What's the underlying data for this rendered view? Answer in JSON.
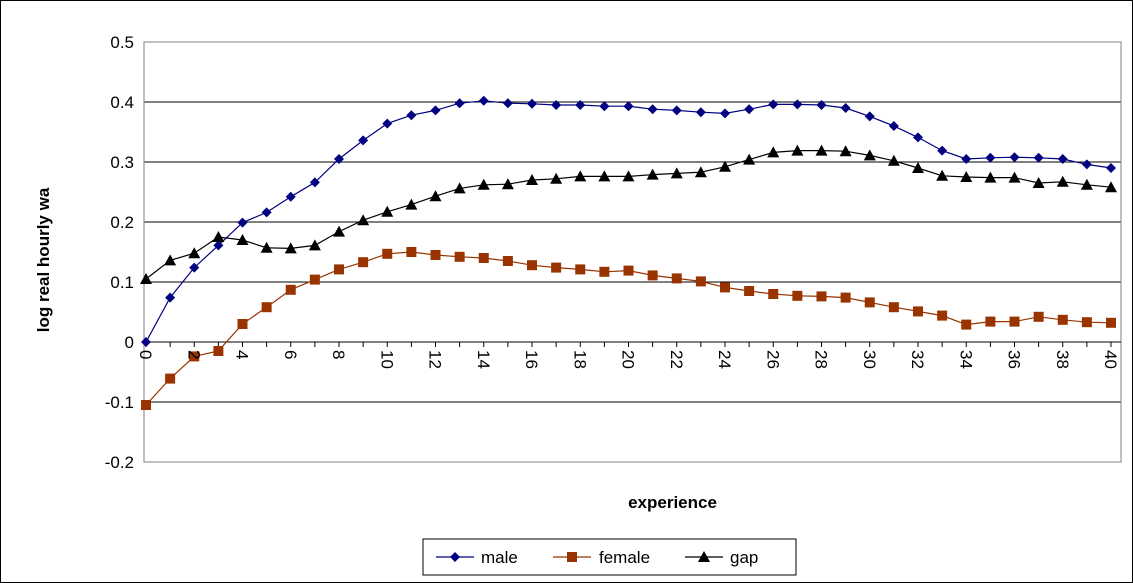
{
  "chart_data": {
    "type": "line",
    "title": "",
    "xlabel": "experience",
    "ylabel": "log real hourly wa",
    "ylim": [
      -0.2,
      0.5
    ],
    "y_ticks": [
      "0.5",
      "0.4",
      "0.3",
      "0.2",
      "0.1",
      "0",
      "-0.1",
      "-0.2"
    ],
    "x_tick_labels": [
      "0",
      "2",
      "4",
      "6",
      "8",
      "10",
      "12",
      "14",
      "16",
      "18",
      "20",
      "22",
      "24",
      "26",
      "28",
      "30",
      "32",
      "34",
      "36",
      "38",
      "40"
    ],
    "x": [
      0,
      1,
      2,
      3,
      4,
      5,
      6,
      7,
      8,
      9,
      10,
      11,
      12,
      13,
      14,
      15,
      16,
      17,
      18,
      19,
      20,
      21,
      22,
      23,
      24,
      25,
      26,
      27,
      28,
      29,
      30,
      31,
      32,
      33,
      34,
      35,
      36,
      37,
      38,
      39,
      40
    ],
    "grid": true,
    "legend_position": "bottom",
    "series": [
      {
        "name": "male",
        "color": "#000080",
        "marker": "diamond",
        "values": [
          0.0,
          0.074,
          0.124,
          0.161,
          0.199,
          0.216,
          0.242,
          0.266,
          0.305,
          0.336,
          0.364,
          0.378,
          0.386,
          0.398,
          0.402,
          0.398,
          0.397,
          0.395,
          0.395,
          0.393,
          0.393,
          0.388,
          0.386,
          0.383,
          0.381,
          0.388,
          0.396,
          0.396,
          0.395,
          0.39,
          0.376,
          0.36,
          0.341,
          0.319,
          0.305,
          0.307,
          0.308,
          0.307,
          0.305,
          0.296,
          0.29
        ]
      },
      {
        "name": "female",
        "color": "#993300",
        "marker": "square",
        "values": [
          -0.105,
          -0.061,
          -0.024,
          -0.015,
          0.03,
          0.058,
          0.087,
          0.104,
          0.121,
          0.133,
          0.147,
          0.15,
          0.145,
          0.142,
          0.14,
          0.135,
          0.128,
          0.124,
          0.121,
          0.117,
          0.119,
          0.111,
          0.106,
          0.101,
          0.091,
          0.085,
          0.08,
          0.077,
          0.076,
          0.074,
          0.066,
          0.058,
          0.051,
          0.044,
          0.029,
          0.034,
          0.034,
          0.042,
          0.037,
          0.033,
          0.032
        ]
      },
      {
        "name": "gap",
        "color": "#000000",
        "marker": "triangle",
        "values": [
          0.105,
          0.136,
          0.148,
          0.175,
          0.17,
          0.157,
          0.156,
          0.161,
          0.184,
          0.203,
          0.217,
          0.229,
          0.243,
          0.256,
          0.262,
          0.263,
          0.27,
          0.272,
          0.276,
          0.276,
          0.276,
          0.279,
          0.281,
          0.283,
          0.292,
          0.304,
          0.316,
          0.319,
          0.319,
          0.318,
          0.311,
          0.302,
          0.29,
          0.277,
          0.275,
          0.274,
          0.274,
          0.265,
          0.267,
          0.262,
          0.258
        ]
      }
    ]
  }
}
